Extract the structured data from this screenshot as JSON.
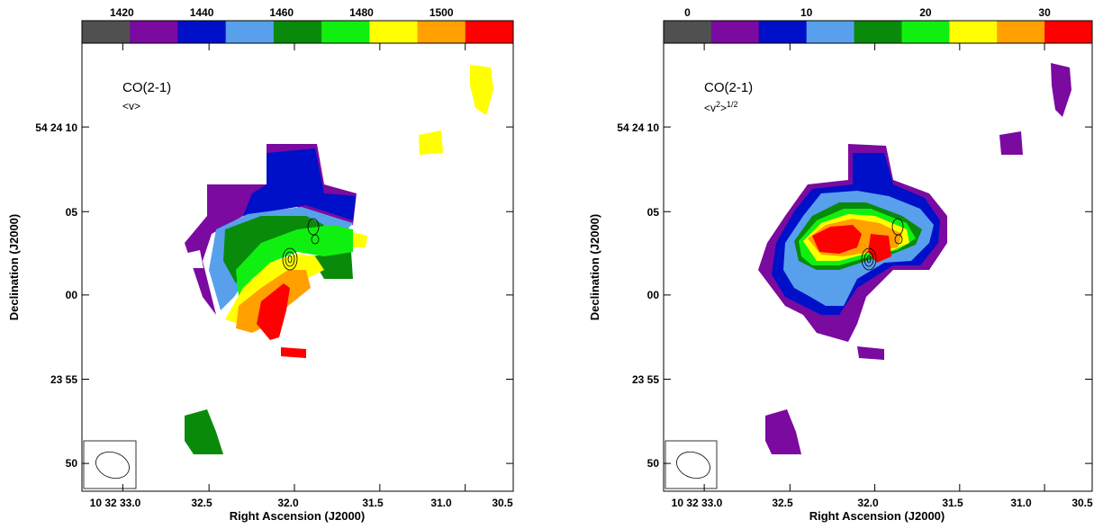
{
  "chart_data": [
    {
      "type": "heatmap",
      "annotation": "CO(2-1)",
      "quantity": "<v>",
      "colorbar": {
        "tick_labels": [
          "1420",
          "1440",
          "1460",
          "1480",
          "1500"
        ],
        "tick_values": [
          1420,
          1440,
          1460,
          1480,
          1500
        ],
        "range": [
          1410,
          1518
        ],
        "bins": [
          {
            "color": "#505050"
          },
          {
            "color": "#7a0aa0"
          },
          {
            "color": "#0010c8"
          },
          {
            "color": "#58a0ec"
          },
          {
            "color": "#0a8a0a"
          },
          {
            "color": "#10f010"
          },
          {
            "color": "#ffff00"
          },
          {
            "color": "#ffa000"
          },
          {
            "color": "#ff0000"
          }
        ]
      },
      "xlabel": "Right Ascension (J2000)",
      "ylabel": "Declination (J2000)",
      "x_tick_labels": [
        "10 32 33.0",
        "32.5",
        "32.0",
        "31.5",
        "31.0",
        "30.5"
      ],
      "y_tick_labels": [
        "54 24 10",
        "05",
        "00",
        "23 55",
        "50"
      ],
      "xlim_seconds": [
        33.2,
        30.4
      ],
      "ylim_arcsec": [
        -12,
        15
      ]
    },
    {
      "type": "heatmap",
      "annotation": "CO(2-1)",
      "quantity": "<v",
      "quantity_sup": "2",
      "quantity_close": ">",
      "quantity_sup2": "1/2",
      "colorbar": {
        "tick_labels": [
          "0",
          "10",
          "20",
          "30"
        ],
        "tick_values": [
          0,
          10,
          20,
          30
        ],
        "range": [
          -2,
          34
        ],
        "bins": [
          {
            "color": "#505050"
          },
          {
            "color": "#7a0aa0"
          },
          {
            "color": "#0010c8"
          },
          {
            "color": "#58a0ec"
          },
          {
            "color": "#0a8a0a"
          },
          {
            "color": "#10f010"
          },
          {
            "color": "#ffff00"
          },
          {
            "color": "#ffa000"
          },
          {
            "color": "#ff0000"
          }
        ]
      },
      "xlabel": "Right Ascension (J2000)",
      "ylabel": "Declination (J2000)",
      "x_tick_labels": [
        "10 32 33.0",
        "32.5",
        "32.0",
        "31.5",
        "31.0",
        "30.5"
      ],
      "y_tick_labels": [
        "54 24 10",
        "05",
        "00",
        "23 55",
        "50"
      ],
      "xlim_seconds": [
        33.2,
        30.4
      ],
      "ylim_arcsec": [
        -12,
        15
      ]
    }
  ]
}
